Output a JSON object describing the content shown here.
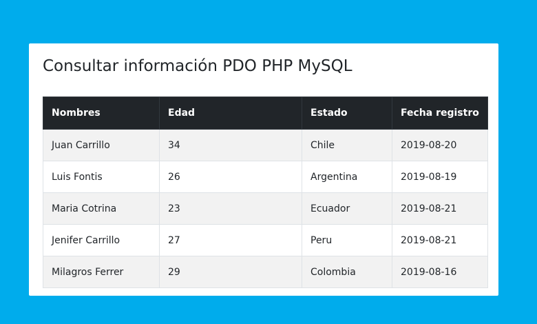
{
  "page": {
    "title": "Consultar información PDO PHP MySQL"
  },
  "table": {
    "headers": [
      "Nombres",
      "Edad",
      "Estado",
      "Fecha registro"
    ],
    "rows": [
      [
        "Juan Carrillo",
        "34",
        "Chile",
        "2019-08-20"
      ],
      [
        "Luis Fontis",
        "26",
        "Argentina",
        "2019-08-19"
      ],
      [
        "Maria Cotrina",
        "23",
        "Ecuador",
        "2019-08-21"
      ],
      [
        "Jenifer Carrillo",
        "27",
        "Peru",
        "2019-08-21"
      ],
      [
        "Milagros Ferrer",
        "29",
        "Colombia",
        "2019-08-16"
      ]
    ]
  },
  "colors": {
    "background": "#00acec",
    "card": "#ffffff",
    "header_bg": "#212529",
    "stripe": "#f2f2f2"
  }
}
